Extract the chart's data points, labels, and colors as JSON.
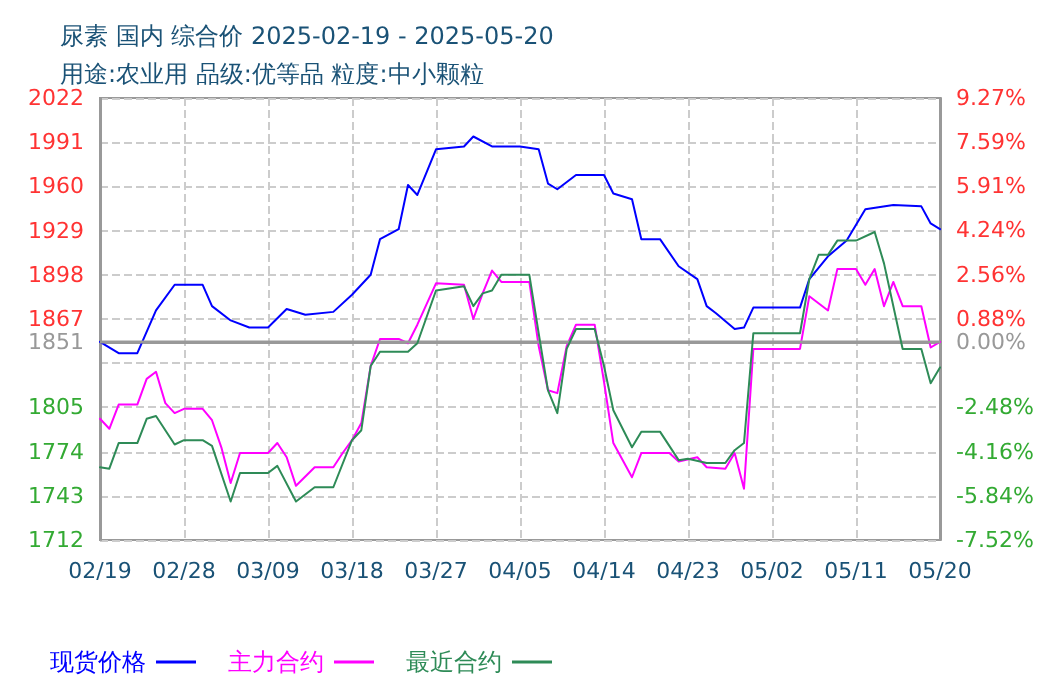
{
  "chart_data": {
    "type": "line",
    "title": "尿素 国内 综合价 2025-02-19 - 2025-05-20",
    "subtitle": "用途:农业用 品级:优等品 粒度:中小颗粒",
    "xlim": [
      "2025-02-19",
      "2025-05-20"
    ],
    "xticks": [
      {
        "value": "2025-02-19",
        "label": "02/19"
      },
      {
        "value": "2025-02-28",
        "label": "02/28"
      },
      {
        "value": "2025-03-09",
        "label": "03/09"
      },
      {
        "value": "2025-03-18",
        "label": "03/18"
      },
      {
        "value": "2025-03-27",
        "label": "03/27"
      },
      {
        "value": "2025-04-05",
        "label": "04/05"
      },
      {
        "value": "2025-04-14",
        "label": "04/14"
      },
      {
        "value": "2025-04-23",
        "label": "04/23"
      },
      {
        "value": "2025-05-02",
        "label": "05/02"
      },
      {
        "value": "2025-05-11",
        "label": "05/11"
      },
      {
        "value": "2025-05-20",
        "label": "05/20"
      }
    ],
    "ylim": [
      1712,
      2022
    ],
    "yticks": [
      1712,
      1743,
      1774,
      1805,
      {
        "value": 1836,
        "label": null
      },
      1851,
      1867,
      1898,
      1929,
      1960,
      1991,
      2022
    ],
    "y2lim": [
      -7.52,
      9.27
    ],
    "y2ticks": [
      {
        "value": -7.52,
        "label": "-7.52%"
      },
      {
        "value": -5.84,
        "label": "-5.84%"
      },
      {
        "value": -4.16,
        "label": "-4.16%"
      },
      {
        "value": -2.48,
        "label": "-2.48%"
      },
      {
        "value": 0,
        "label": "0.00%"
      },
      {
        "value": 0.88,
        "label": "0.88%"
      },
      {
        "value": 2.56,
        "label": "2.56%"
      },
      {
        "value": 4.24,
        "label": "4.24%"
      },
      {
        "value": 5.91,
        "label": "5.91%"
      },
      {
        "value": 7.59,
        "label": "7.59%"
      },
      {
        "value": 9.27,
        "label": "9.27%"
      }
    ],
    "ref_lines": [
      {
        "axis": "y",
        "value": 1851,
        "color": "#999999"
      }
    ],
    "grid": true,
    "legend": "bottom left",
    "marker": "none",
    "line_style": "solid",
    "series": [
      {
        "name": "现货价格",
        "color": "#0000ff",
        "x": [
          "2025-02-19",
          "2025-02-21",
          "2025-02-23",
          "2025-02-25",
          "2025-02-27",
          "2025-03-02",
          "2025-03-03",
          "2025-03-05",
          "2025-03-07",
          "2025-03-09",
          "2025-03-11",
          "2025-03-13",
          "2025-03-16",
          "2025-03-18",
          "2025-03-20",
          "2025-03-21",
          "2025-03-23",
          "2025-03-24",
          "2025-03-25",
          "2025-03-27",
          "2025-03-30",
          "2025-03-31",
          "2025-04-02",
          "2025-04-05",
          "2025-04-07",
          "2025-04-08",
          "2025-04-09",
          "2025-04-11",
          "2025-04-14",
          "2025-04-15",
          "2025-04-17",
          "2025-04-18",
          "2025-04-20",
          "2025-04-22",
          "2025-04-24",
          "2025-04-25",
          "2025-04-26",
          "2025-04-28",
          "2025-04-29",
          "2025-04-30",
          "2025-05-05",
          "2025-05-06",
          "2025-05-08",
          "2025-05-10",
          "2025-05-12",
          "2025-05-15",
          "2025-05-18",
          "2025-05-19",
          "2025-05-20"
        ],
        "values": [
          1851,
          1843,
          1843,
          1873,
          1891,
          1891,
          1876,
          1866,
          1861,
          1861,
          1874,
          1870,
          1872,
          1884,
          1898,
          1923,
          1930,
          1961,
          1954,
          1986,
          1988,
          1995,
          1988,
          1988,
          1986,
          1962,
          1958,
          1968,
          1968,
          1955,
          1951,
          1923,
          1923,
          1904,
          1895,
          1876,
          1871,
          1860,
          1861,
          1875,
          1875,
          1895,
          1911,
          1922,
          1944,
          1947,
          1946,
          1934,
          1930
        ]
      },
      {
        "name": "主力合约",
        "color": "#ff00ff",
        "x": [
          "2025-02-19",
          "2025-02-20",
          "2025-02-21",
          "2025-02-23",
          "2025-02-24",
          "2025-02-25",
          "2025-02-26",
          "2025-02-27",
          "2025-02-28",
          "2025-03-02",
          "2025-03-03",
          "2025-03-04",
          "2025-03-05",
          "2025-03-06",
          "2025-03-09",
          "2025-03-10",
          "2025-03-11",
          "2025-03-12",
          "2025-03-14",
          "2025-03-16",
          "2025-03-17",
          "2025-03-18",
          "2025-03-19",
          "2025-03-20",
          "2025-03-21",
          "2025-03-23",
          "2025-03-24",
          "2025-03-25",
          "2025-03-27",
          "2025-03-30",
          "2025-03-31",
          "2025-04-01",
          "2025-04-02",
          "2025-04-03",
          "2025-04-06",
          "2025-04-07",
          "2025-04-08",
          "2025-04-09",
          "2025-04-10",
          "2025-04-11",
          "2025-04-13",
          "2025-04-14",
          "2025-04-15",
          "2025-04-17",
          "2025-04-18",
          "2025-04-21",
          "2025-04-22",
          "2025-04-24",
          "2025-04-25",
          "2025-04-27",
          "2025-04-28",
          "2025-04-29",
          "2025-04-30",
          "2025-05-05",
          "2025-05-06",
          "2025-05-08",
          "2025-05-09",
          "2025-05-11",
          "2025-05-12",
          "2025-05-13",
          "2025-05-14",
          "2025-05-15",
          "2025-05-16",
          "2025-05-18",
          "2025-05-19",
          "2025-05-20"
        ],
        "values": [
          1797,
          1790,
          1807,
          1807,
          1825,
          1830,
          1808,
          1801,
          1804,
          1804,
          1796,
          1777,
          1752,
          1773,
          1773,
          1780,
          1770,
          1750,
          1763,
          1763,
          1773,
          1782,
          1794,
          1834,
          1853,
          1853,
          1850,
          1863,
          1892,
          1891,
          1867,
          1885,
          1901,
          1893,
          1893,
          1848,
          1817,
          1815,
          1848,
          1863,
          1863,
          1823,
          1780,
          1756,
          1773,
          1773,
          1767,
          1770,
          1763,
          1762,
          1773,
          1748,
          1846,
          1846,
          1883,
          1873,
          1902,
          1902,
          1891,
          1902,
          1876,
          1893,
          1876,
          1876,
          1847,
          1851
        ]
      },
      {
        "name": "最近合约",
        "color": "#2e8b57",
        "x": [
          "2025-02-19",
          "2025-02-20",
          "2025-02-21",
          "2025-02-23",
          "2025-02-24",
          "2025-02-25",
          "2025-02-27",
          "2025-02-28",
          "2025-03-02",
          "2025-03-03",
          "2025-03-05",
          "2025-03-06",
          "2025-03-09",
          "2025-03-10",
          "2025-03-12",
          "2025-03-14",
          "2025-03-16",
          "2025-03-18",
          "2025-03-19",
          "2025-03-20",
          "2025-03-21",
          "2025-03-24",
          "2025-03-25",
          "2025-03-27",
          "2025-03-30",
          "2025-03-31",
          "2025-04-01",
          "2025-04-02",
          "2025-04-03",
          "2025-04-06",
          "2025-04-07",
          "2025-04-08",
          "2025-04-09",
          "2025-04-10",
          "2025-04-11",
          "2025-04-13",
          "2025-04-14",
          "2025-04-15",
          "2025-04-17",
          "2025-04-18",
          "2025-04-20",
          "2025-04-22",
          "2025-04-23",
          "2025-04-25",
          "2025-04-27",
          "2025-04-28",
          "2025-04-29",
          "2025-04-30",
          "2025-05-05",
          "2025-05-06",
          "2025-05-07",
          "2025-05-08",
          "2025-05-09",
          "2025-05-11",
          "2025-05-13",
          "2025-05-14",
          "2025-05-16",
          "2025-05-18",
          "2025-05-19",
          "2025-05-20"
        ],
        "values": [
          1763,
          1762,
          1780,
          1780,
          1797,
          1799,
          1779,
          1782,
          1782,
          1778,
          1739,
          1759,
          1759,
          1764,
          1739,
          1749,
          1749,
          1782,
          1789,
          1834,
          1844,
          1844,
          1850,
          1887,
          1890,
          1876,
          1885,
          1887,
          1898,
          1898,
          1857,
          1817,
          1801,
          1846,
          1860,
          1860,
          1834,
          1803,
          1777,
          1788,
          1788,
          1768,
          1769,
          1766,
          1766,
          1775,
          1780,
          1857,
          1857,
          1895,
          1912,
          1912,
          1922,
          1922,
          1928,
          1906,
          1846,
          1846,
          1822,
          1833
        ]
      }
    ]
  }
}
